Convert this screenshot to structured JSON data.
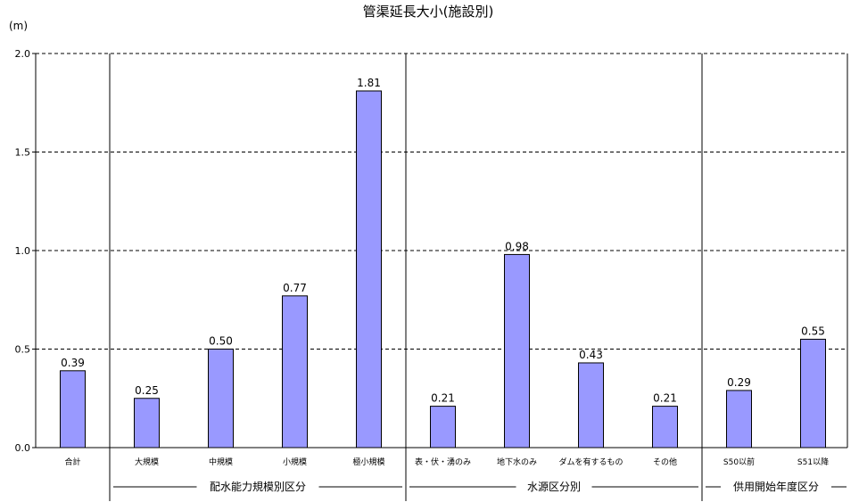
{
  "chart_data": {
    "type": "bar",
    "title": "管渠延長大小(施設別)",
    "unit": "(m)",
    "ylim": [
      0,
      2.0
    ],
    "yticks": [
      "0.0",
      "0.5",
      "1.0",
      "1.5",
      "2.0"
    ],
    "grid": "dashed horizontal at 0.5 intervals",
    "bar_color": "#9999ff",
    "categories": [
      "合計",
      "大規模",
      "中規模",
      "小規模",
      "極小規模",
      "表・伏・湧のみ",
      "地下水のみ",
      "ダムを有するもの",
      "その他",
      "S50以前",
      "S51以降"
    ],
    "values": [
      0.39,
      0.25,
      0.5,
      0.77,
      1.81,
      0.21,
      0.98,
      0.43,
      0.21,
      0.29,
      0.55
    ],
    "value_labels": [
      "0.39",
      "0.25",
      "0.50",
      "0.77",
      "1.81",
      "0.21",
      "0.98",
      "0.43",
      "0.21",
      "0.29",
      "0.55"
    ],
    "groups": [
      {
        "label": "配水能力規模別区分",
        "categories": [
          "大規模",
          "中規模",
          "小規模",
          "極小規模"
        ]
      },
      {
        "label": "水源区分別",
        "categories": [
          "表・伏・湧のみ",
          "地下水のみ",
          "ダムを有するもの",
          "その他"
        ]
      },
      {
        "label": "供用開始年度区分",
        "categories": [
          "S50以前",
          "S51以降"
        ]
      }
    ]
  }
}
